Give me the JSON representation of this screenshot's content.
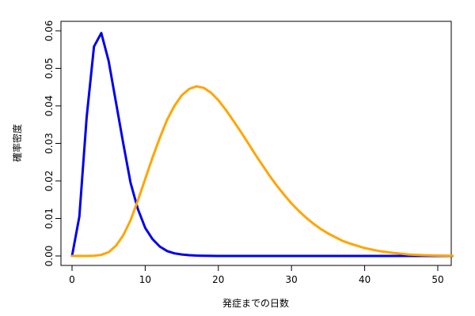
{
  "chart_data": {
    "type": "line",
    "xlabel": "発症までの日数",
    "ylabel": "確率密度",
    "xlim": [
      0,
      52
    ],
    "ylim": [
      0,
      0.06
    ],
    "x_ticks": [
      0,
      10,
      20,
      30,
      40,
      50
    ],
    "y_ticks": [
      0.0,
      0.01,
      0.02,
      0.03,
      0.04,
      0.05,
      0.06
    ],
    "grid": false,
    "legend": "none",
    "series": [
      {
        "color": "#0000ee",
        "x": [
          0,
          1,
          2,
          3,
          4,
          5,
          6,
          7,
          8,
          9,
          10,
          11,
          12,
          13,
          14,
          15,
          16,
          17,
          18,
          19,
          20,
          22,
          25,
          30,
          35,
          40,
          45,
          52
        ],
        "y": [
          0.0,
          0.0105,
          0.037,
          0.0558,
          0.0594,
          0.052,
          0.041,
          0.03,
          0.0195,
          0.0125,
          0.0075,
          0.0045,
          0.0025,
          0.0013,
          0.0007,
          0.0004,
          0.0002,
          0.0001,
          5e-05,
          2e-05,
          0.0,
          0.0,
          0.0,
          0.0,
          0.0,
          0.0,
          0.0,
          0.0
        ]
      },
      {
        "color": "#ffa500",
        "x": [
          0,
          1,
          2,
          3,
          4,
          5,
          6,
          7,
          8,
          9,
          10,
          11,
          12,
          13,
          14,
          15,
          16,
          17,
          18,
          19,
          20,
          21,
          22,
          23,
          24,
          25,
          26,
          27,
          28,
          29,
          30,
          31,
          32,
          33,
          34,
          35,
          36,
          37,
          38,
          39,
          40,
          42,
          44,
          46,
          48,
          50,
          52
        ],
        "y": [
          0.0,
          0.0,
          0.0,
          5e-05,
          0.0003,
          0.001,
          0.0027,
          0.0055,
          0.0095,
          0.0148,
          0.0205,
          0.0262,
          0.0315,
          0.0363,
          0.04,
          0.0428,
          0.0445,
          0.0452,
          0.0448,
          0.0435,
          0.0415,
          0.039,
          0.0362,
          0.0333,
          0.0303,
          0.0272,
          0.0243,
          0.0214,
          0.0187,
          0.0163,
          0.014,
          0.012,
          0.0102,
          0.0086,
          0.0072,
          0.006,
          0.005,
          0.004,
          0.0033,
          0.0027,
          0.0021,
          0.0013,
          0.0008,
          0.0004,
          0.0002,
          0.0001,
          5e-05
        ]
      }
    ]
  }
}
